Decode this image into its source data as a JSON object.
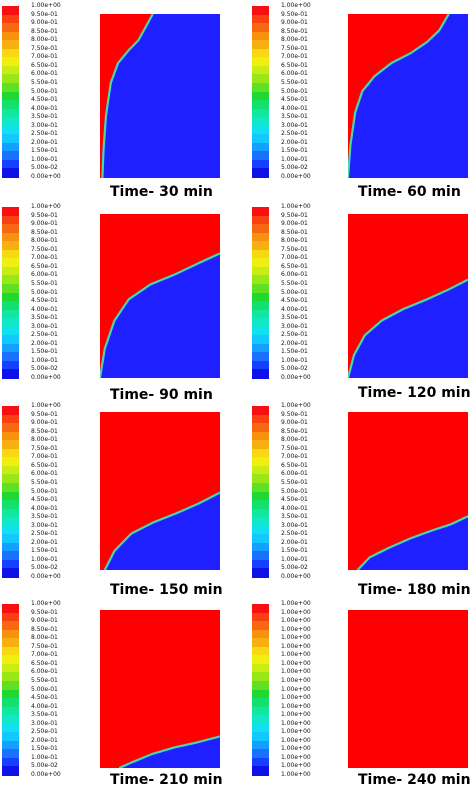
{
  "colors": {
    "red": "#ff0000",
    "blue": "#1f20ff",
    "interface_green": "#5ad86e",
    "interface_cyan": "#36d8e0"
  },
  "legend_colors": [
    "#1010e8",
    "#1540ff",
    "#1a70ff",
    "#14a0ff",
    "#12c8ff",
    "#10e0f0",
    "#10e8c8",
    "#10e8a0",
    "#14e070",
    "#20d830",
    "#60e020",
    "#98e818",
    "#c8ec14",
    "#f0f010",
    "#f8d810",
    "#f8b010",
    "#f89010",
    "#f86810",
    "#f84010",
    "#f81010"
  ],
  "panels": [
    {
      "caption": "Time- 30 min",
      "legend_labels": [
        "1.00e+00",
        "9.50e-01",
        "9.00e-01",
        "8.50e-01",
        "8.00e-01",
        "7.50e-01",
        "7.00e-01",
        "6.50e-01",
        "6.00e-01",
        "5.50e-01",
        "5.00e-01",
        "4.50e-01",
        "4.00e-01",
        "3.50e-01",
        "3.00e-01",
        "2.50e-01",
        "2.00e-01",
        "1.50e-01",
        "1.00e-01",
        "5.00e-02",
        "0.00e+00"
      ],
      "uniform": false
    },
    {
      "caption": "Time- 60 min",
      "legend_labels": [
        "1.00e+00",
        "9.50e-01",
        "9.00e-01",
        "8.50e-01",
        "8.00e-01",
        "7.50e-01",
        "7.00e-01",
        "6.50e-01",
        "6.00e-01",
        "5.50e-01",
        "5.00e-01",
        "4.50e-01",
        "4.00e-01",
        "3.50e-01",
        "3.00e-01",
        "2.50e-01",
        "2.00e-01",
        "1.50e-01",
        "1.00e-01",
        "5.00e-02",
        "0.00e+00"
      ],
      "uniform": false
    },
    {
      "caption": "Time- 90 min",
      "legend_labels": [
        "1.00e+00",
        "9.50e-01",
        "9.00e-01",
        "8.50e-01",
        "8.00e-01",
        "7.50e-01",
        "7.00e-01",
        "6.50e-01",
        "6.00e-01",
        "5.50e-01",
        "5.00e-01",
        "4.50e-01",
        "4.00e-01",
        "3.50e-01",
        "3.00e-01",
        "2.50e-01",
        "2.00e-01",
        "1.50e-01",
        "1.00e-01",
        "5.00e-02",
        "0.00e+00"
      ],
      "uniform": false
    },
    {
      "caption": "Time- 120 min",
      "legend_labels": [
        "1.00e+00",
        "9.50e-01",
        "9.00e-01",
        "8.50e-01",
        "8.00e-01",
        "7.50e-01",
        "7.00e-01",
        "6.50e-01",
        "6.00e-01",
        "5.50e-01",
        "5.00e-01",
        "4.50e-01",
        "4.00e-01",
        "3.50e-01",
        "3.00e-01",
        "2.50e-01",
        "2.00e-01",
        "1.50e-01",
        "1.00e-01",
        "5.00e-02",
        "0.00e+00"
      ],
      "uniform": false
    },
    {
      "caption": "Time- 150 min",
      "legend_labels": [
        "1.00e+00",
        "9.50e-01",
        "9.00e-01",
        "8.50e-01",
        "8.00e-01",
        "7.50e-01",
        "7.00e-01",
        "6.50e-01",
        "6.00e-01",
        "5.50e-01",
        "5.00e-01",
        "4.50e-01",
        "4.00e-01",
        "3.50e-01",
        "3.00e-01",
        "2.50e-01",
        "2.00e-01",
        "1.50e-01",
        "1.00e-01",
        "5.00e-02",
        "0.00e+00"
      ],
      "uniform": false
    },
    {
      "caption": "Time- 180 min",
      "legend_labels": [
        "1.00e+00",
        "9.50e-01",
        "9.00e-01",
        "8.50e-01",
        "8.00e-01",
        "7.50e-01",
        "7.00e-01",
        "6.50e-01",
        "6.00e-01",
        "5.50e-01",
        "5.00e-01",
        "4.50e-01",
        "4.00e-01",
        "3.50e-01",
        "3.00e-01",
        "2.50e-01",
        "2.00e-01",
        "1.50e-01",
        "1.00e-01",
        "5.00e-02",
        "0.00e+00"
      ],
      "uniform": false
    },
    {
      "caption": "Time- 210 min",
      "legend_labels": [
        "1.00e+00",
        "9.50e-01",
        "9.00e-01",
        "8.50e-01",
        "8.00e-01",
        "7.50e-01",
        "7.00e-01",
        "6.50e-01",
        "6.00e-01",
        "5.50e-01",
        "5.00e-01",
        "4.50e-01",
        "4.00e-01",
        "3.50e-01",
        "3.00e-01",
        "2.50e-01",
        "2.00e-01",
        "1.50e-01",
        "1.00e-01",
        "5.00e-02",
        "0.00e+00"
      ],
      "uniform": false
    },
    {
      "caption": "Time- 240 min",
      "legend_labels": [
        "1.00e+00",
        "1.00e+00",
        "1.00e+00",
        "1.00e+00",
        "1.00e+00",
        "1.00e+00",
        "1.00e+00",
        "1.00e+00",
        "1.00e+00",
        "1.00e+00",
        "1.00e+00",
        "1.00e+00",
        "1.00e+00",
        "1.00e+00",
        "1.00e+00",
        "1.00e+00",
        "1.00e+00",
        "1.00e+00",
        "1.00e+00",
        "1.00e+00",
        "1.00e+00"
      ],
      "uniform": true
    }
  ]
}
